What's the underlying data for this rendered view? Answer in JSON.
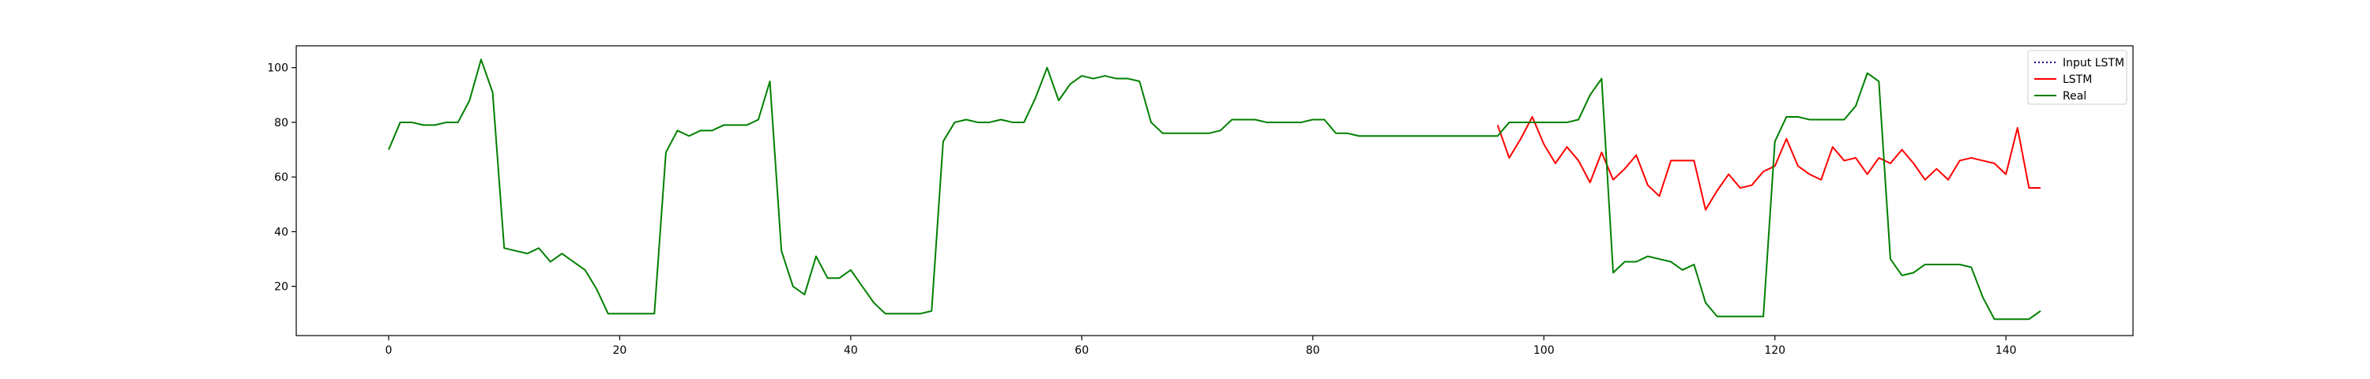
{
  "chart_data": {
    "type": "line",
    "title": "",
    "xlabel": "",
    "ylabel": "",
    "xlim": [
      -8,
      151
    ],
    "ylim": [
      2,
      108
    ],
    "xticks": [
      0,
      20,
      40,
      60,
      80,
      100,
      120,
      140
    ],
    "yticks": [
      20,
      40,
      60,
      80,
      100
    ],
    "grid": false,
    "legend_position": "top-right",
    "series": [
      {
        "name": "Input LSTM",
        "color": "#00008b",
        "style": "dotted",
        "x": [],
        "values": []
      },
      {
        "name": "LSTM",
        "color": "#ff0000",
        "style": "solid",
        "x": [
          96,
          97,
          98,
          99,
          100,
          101,
          102,
          103,
          104,
          105,
          106,
          107,
          108,
          109,
          110,
          111,
          112,
          113,
          114,
          115,
          116,
          117,
          118,
          119,
          120,
          121,
          122,
          123,
          124,
          125,
          126,
          127,
          128,
          129,
          130,
          131,
          132,
          133,
          134,
          135,
          136,
          137,
          138,
          139,
          140,
          141,
          142,
          143
        ],
        "values": [
          79,
          67,
          74,
          82,
          72,
          65,
          71,
          66,
          58,
          69,
          59,
          63,
          68,
          57,
          53,
          66,
          66,
          66,
          48,
          55,
          61,
          56,
          57,
          62,
          64,
          74,
          64,
          61,
          59,
          71,
          66,
          67,
          61,
          67,
          65,
          70,
          65,
          59,
          63,
          59,
          66,
          67,
          66,
          65,
          61,
          78,
          56,
          56
        ]
      },
      {
        "name": "Real",
        "color": "#008000",
        "style": "solid",
        "x": [
          0,
          1,
          2,
          3,
          4,
          5,
          6,
          7,
          8,
          9,
          10,
          11,
          12,
          13,
          14,
          15,
          16,
          17,
          18,
          19,
          20,
          21,
          22,
          23,
          24,
          25,
          26,
          27,
          28,
          29,
          30,
          31,
          32,
          33,
          34,
          35,
          36,
          37,
          38,
          39,
          40,
          41,
          42,
          43,
          44,
          45,
          46,
          47,
          48,
          49,
          50,
          51,
          52,
          53,
          54,
          55,
          56,
          57,
          58,
          59,
          60,
          61,
          62,
          63,
          64,
          65,
          66,
          67,
          68,
          69,
          70,
          71,
          72,
          73,
          74,
          75,
          76,
          77,
          78,
          79,
          80,
          81,
          82,
          83,
          84,
          85,
          86,
          87,
          88,
          89,
          90,
          91,
          92,
          93,
          94,
          95,
          96,
          97,
          98,
          99,
          100,
          101,
          102,
          103,
          104,
          105,
          106,
          107,
          108,
          109,
          110,
          111,
          112,
          113,
          114,
          115,
          116,
          117,
          118,
          119,
          120,
          121,
          122,
          123,
          124,
          125,
          126,
          127,
          128,
          129,
          130,
          131,
          132,
          133,
          134,
          135,
          136,
          137,
          138,
          139,
          140,
          141,
          142,
          143
        ],
        "values": [
          70,
          80,
          80,
          79,
          79,
          80,
          80,
          88,
          103,
          91,
          34,
          33,
          32,
          34,
          29,
          32,
          29,
          26,
          19,
          10,
          10,
          10,
          10,
          10,
          69,
          77,
          75,
          77,
          77,
          79,
          79,
          79,
          81,
          95,
          33,
          20,
          17,
          31,
          23,
          23,
          26,
          20,
          14,
          10,
          10,
          10,
          10,
          11,
          73,
          80,
          81,
          80,
          80,
          81,
          80,
          80,
          89,
          100,
          88,
          94,
          97,
          96,
          97,
          96,
          96,
          95,
          80,
          76,
          76,
          76,
          76,
          76,
          77,
          81,
          81,
          81,
          80,
          80,
          80,
          80,
          81,
          81,
          76,
          76,
          75,
          75,
          75,
          75,
          75,
          75,
          75,
          75,
          75,
          75,
          75,
          75,
          75,
          80,
          80,
          80,
          80,
          80,
          80,
          81,
          90,
          96,
          25,
          29,
          29,
          31,
          30,
          29,
          26,
          28,
          14,
          9,
          9,
          9,
          9,
          9,
          73,
          82,
          82,
          81,
          81,
          81,
          81,
          86,
          98,
          95,
          30,
          24,
          25,
          28,
          28,
          28,
          28,
          27,
          16,
          8,
          8,
          8,
          8,
          11
        ]
      }
    ]
  }
}
